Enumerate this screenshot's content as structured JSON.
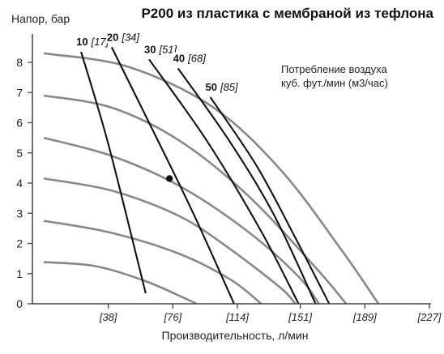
{
  "chart_data": {
    "type": "line",
    "title": "P200 из пластика с мембраной из тефлона",
    "ylabel": "Напор, бар",
    "xlabel": "Производительность, л/мин",
    "ylim": [
      0,
      8.6
    ],
    "xlim": [
      0,
      227
    ],
    "y_ticks": [
      0,
      1,
      2,
      3,
      4,
      5,
      6,
      7,
      8
    ],
    "x_ticks": [
      {
        "value": 38,
        "label": "[38]"
      },
      {
        "value": 76,
        "label": "[76]"
      },
      {
        "value": 114,
        "label": "[114]"
      },
      {
        "value": 151,
        "label": "[151]"
      },
      {
        "value": 189,
        "label": "[189]"
      },
      {
        "value": 227,
        "label": "[227]"
      }
    ],
    "legend_text": [
      "Потребление воздуха",
      "куб. фут./мин (м3/час)"
    ],
    "performance_curves": [
      {
        "color": "#888888",
        "points": [
          [
            0,
            8.3
          ],
          [
            50,
            7.85
          ],
          [
            100,
            6.5
          ],
          [
            140,
            4.4
          ],
          [
            175,
            1.8
          ],
          [
            197,
            0
          ]
        ]
      },
      {
        "color": "#888888",
        "points": [
          [
            0,
            6.9
          ],
          [
            40,
            6.5
          ],
          [
            80,
            5.4
          ],
          [
            120,
            3.6
          ],
          [
            160,
            1.2
          ],
          [
            178,
            0
          ]
        ]
      },
      {
        "color": "#888888",
        "points": [
          [
            0,
            5.5
          ],
          [
            40,
            4.9
          ],
          [
            80,
            3.9
          ],
          [
            120,
            2.4
          ],
          [
            150,
            0.9
          ],
          [
            162,
            0
          ]
        ]
      },
      {
        "color": "#888888",
        "points": [
          [
            0,
            4.15
          ],
          [
            40,
            3.75
          ],
          [
            80,
            2.9
          ],
          [
            110,
            1.8
          ],
          [
            140,
            0.5
          ],
          [
            148,
            0
          ]
        ]
      },
      {
        "color": "#888888",
        "points": [
          [
            0,
            2.75
          ],
          [
            40,
            2.35
          ],
          [
            80,
            1.65
          ],
          [
            110,
            0.8
          ],
          [
            128,
            0
          ]
        ]
      },
      {
        "color": "#888888",
        "points": [
          [
            0,
            1.38
          ],
          [
            30,
            1.25
          ],
          [
            60,
            0.75
          ],
          [
            90,
            0
          ]
        ]
      }
    ],
    "air_consumption_lines": [
      {
        "cfm": "10",
        "m3h": "[17]",
        "points": [
          [
            22,
            8.35
          ],
          [
            37,
            5.5
          ],
          [
            51,
            2.4
          ],
          [
            60,
            0.35
          ]
        ]
      },
      {
        "cfm": "20",
        "m3h": "[34]",
        "points": [
          [
            40,
            8.5
          ],
          [
            62,
            6.0
          ],
          [
            88,
            3.0
          ],
          [
            112,
            0
          ]
        ]
      },
      {
        "cfm": "30",
        "m3h": "[51]",
        "points": [
          [
            62,
            8.1
          ],
          [
            96,
            5.4
          ],
          [
            128,
            2.4
          ],
          [
            150,
            0
          ]
        ]
      },
      {
        "cfm": "40",
        "m3h": "[68]",
        "points": [
          [
            79,
            7.8
          ],
          [
            108,
            5.5
          ],
          [
            135,
            3.0
          ],
          [
            160,
            0
          ]
        ]
      },
      {
        "cfm": "50",
        "m3h": "[85]",
        "points": [
          [
            98,
            6.85
          ],
          [
            125,
            4.6
          ],
          [
            148,
            2.2
          ],
          [
            168,
            0
          ]
        ]
      }
    ],
    "marker_point": {
      "x": 74,
      "y": 4.15
    },
    "grid": false
  }
}
